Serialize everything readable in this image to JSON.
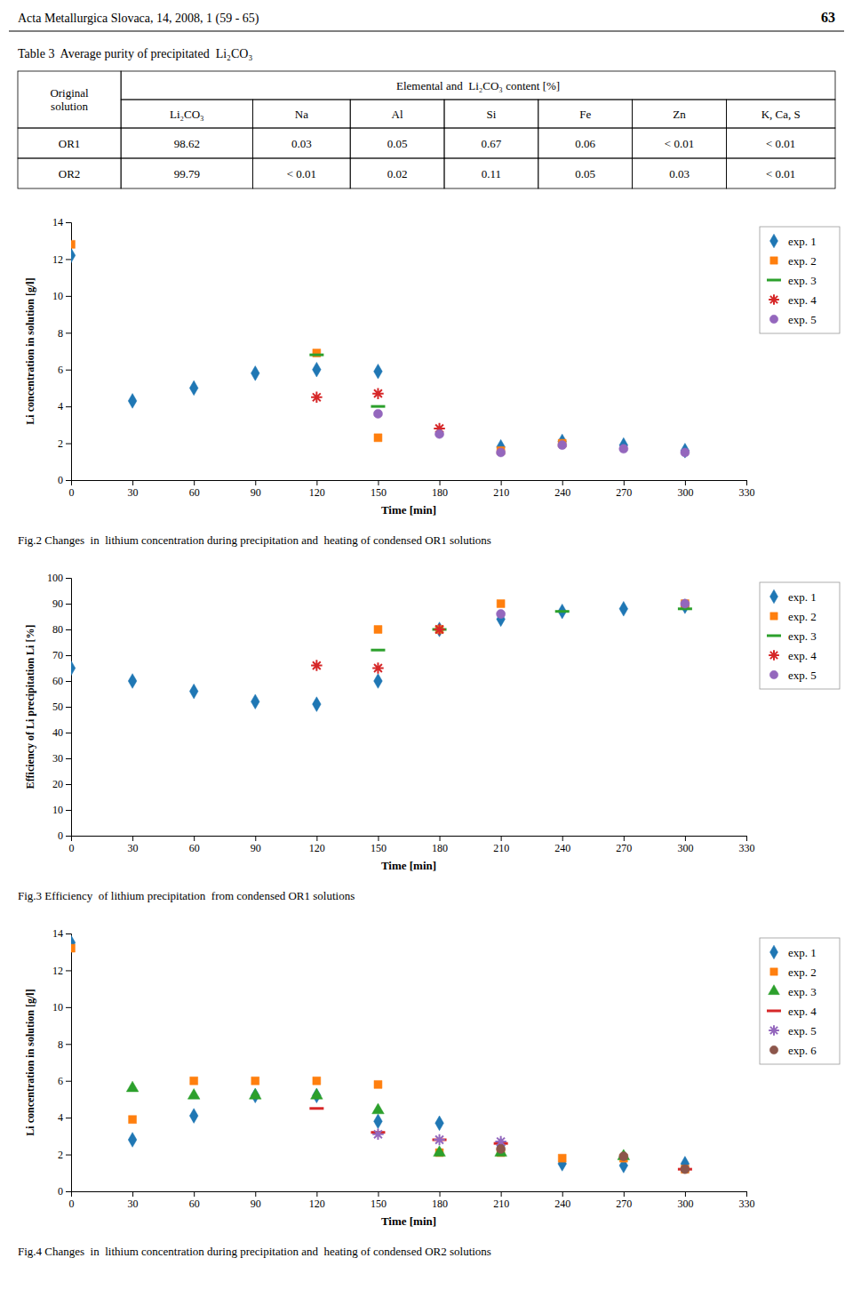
{
  "page_title": "Acta Metallurgica Slovaca, 14, 2008, 1 (59 - 65)",
  "page_number": "63",
  "table": {
    "title": "Table 3  Average purity of precipitated  Li₂CO₃",
    "corner": "Original\nsolution",
    "group_header": "Elemental and  Li₂CO₃ content [%]",
    "columns": [
      "Li₂CO₃",
      "Na",
      "Al",
      "Si",
      "Fe",
      "Zn",
      "K, Ca, S"
    ],
    "rows": [
      [
        "OR1",
        "98.62",
        "0.03",
        "0.05",
        "0.67",
        "0.06",
        "< 0.01",
        "< 0.01"
      ],
      [
        "OR2",
        "99.79",
        "< 0.01",
        "0.02",
        "0.11",
        "0.05",
        "0.03",
        "< 0.01"
      ]
    ]
  },
  "chart_data": [
    {
      "type": "scatter",
      "title": "Fig.2 Changes  in  lithium concentration during precipitation and  heating of condensed OR1 solutions",
      "xlabel": "Time [min]",
      "ylabel": "Li concentration in solution [g/l]",
      "xlim": [
        0,
        330
      ],
      "ylim": [
        0,
        14
      ],
      "xticks": [
        0,
        30,
        60,
        90,
        120,
        150,
        180,
        210,
        240,
        270,
        300,
        330
      ],
      "yticks": [
        0,
        2,
        4,
        6,
        8,
        10,
        12,
        14
      ],
      "grid": false,
      "legend": "right",
      "series": [
        {
          "name": "exp. 1",
          "marker": "diamond",
          "x": [
            0,
            30,
            60,
            90,
            120,
            150,
            210,
            240,
            270,
            300
          ],
          "values": [
            12.2,
            4.3,
            5.0,
            5.8,
            6.0,
            5.9,
            1.8,
            2.1,
            1.9,
            1.6
          ]
        },
        {
          "name": "exp. 2",
          "marker": "square",
          "x": [
            0,
            120,
            150,
            210,
            240
          ],
          "values": [
            12.8,
            6.9,
            2.3,
            1.6,
            2.0
          ]
        },
        {
          "name": "exp. 3",
          "marker": "dash",
          "x": [
            120,
            150
          ],
          "values": [
            6.8,
            4.0
          ]
        },
        {
          "name": "exp. 4",
          "marker": "asterisk",
          "x": [
            120,
            150,
            180
          ],
          "values": [
            4.5,
            4.7,
            2.8
          ]
        },
        {
          "name": "exp. 5",
          "marker": "circle",
          "x": [
            150,
            180,
            210,
            240,
            270,
            300
          ],
          "values": [
            3.6,
            2.5,
            1.5,
            1.9,
            1.7,
            1.5
          ]
        }
      ]
    },
    {
      "type": "scatter",
      "title": "Fig.3 Efficiency  of lithium precipitation  from condensed OR1 solutions",
      "xlabel": "Time [min]",
      "ylabel": "Efficiency of Li precipitation Li [%]",
      "xlim": [
        0,
        330
      ],
      "ylim": [
        0,
        100
      ],
      "xticks": [
        0,
        30,
        60,
        90,
        120,
        150,
        180,
        210,
        240,
        270,
        300,
        330
      ],
      "yticks": [
        0,
        10,
        20,
        30,
        40,
        50,
        60,
        70,
        80,
        90,
        100
      ],
      "grid": false,
      "legend": "right",
      "series": [
        {
          "name": "exp. 1",
          "marker": "diamond",
          "x": [
            0,
            30,
            60,
            90,
            120,
            150,
            180,
            210,
            240,
            270,
            300
          ],
          "values": [
            65,
            60,
            56,
            52,
            51,
            60,
            80,
            84,
            87,
            88,
            89
          ]
        },
        {
          "name": "exp. 2",
          "marker": "square",
          "x": [
            150,
            180,
            210,
            300
          ],
          "values": [
            80,
            80,
            90,
            90
          ]
        },
        {
          "name": "exp. 3",
          "marker": "dash",
          "x": [
            150,
            180,
            240,
            300
          ],
          "values": [
            72,
            80,
            87,
            88
          ]
        },
        {
          "name": "exp. 4",
          "marker": "asterisk",
          "x": [
            120,
            150,
            180
          ],
          "values": [
            66,
            65,
            80
          ]
        },
        {
          "name": "exp. 5",
          "marker": "circle",
          "x": [
            210,
            300
          ],
          "values": [
            86,
            90
          ]
        }
      ]
    },
    {
      "type": "scatter",
      "title": "Fig.4 Changes  in  lithium concentration during precipitation and  heating of condensed OR2 solutions",
      "xlabel": "Time [min]",
      "ylabel": "Li concentration in solution [g/l]",
      "xlim": [
        0,
        330
      ],
      "ylim": [
        0,
        14
      ],
      "xticks": [
        0,
        30,
        60,
        90,
        120,
        150,
        180,
        210,
        240,
        270,
        300,
        330
      ],
      "yticks": [
        0,
        2,
        4,
        6,
        8,
        10,
        12,
        14
      ],
      "grid": false,
      "legend": "right",
      "series": [
        {
          "name": "exp. 1",
          "marker": "diamond",
          "x": [
            0,
            30,
            60,
            90,
            120,
            150,
            180,
            210,
            240,
            270,
            300
          ],
          "values": [
            13.5,
            2.8,
            4.1,
            5.2,
            5.2,
            3.8,
            3.7,
            2.5,
            1.5,
            1.4,
            1.5
          ]
        },
        {
          "name": "exp. 2",
          "marker": "square",
          "x": [
            0,
            30,
            60,
            90,
            120,
            150,
            180,
            210,
            240,
            270,
            300
          ],
          "values": [
            13.2,
            3.9,
            6.0,
            6.0,
            6.0,
            5.8,
            2.1,
            2.1,
            1.8,
            1.8,
            1.2
          ]
        },
        {
          "name": "exp. 3",
          "marker": "triangle",
          "x": [
            30,
            60,
            90,
            120,
            150,
            180,
            210,
            270
          ],
          "values": [
            5.6,
            5.2,
            5.2,
            5.2,
            4.4,
            2.1,
            2.1,
            1.9
          ]
        },
        {
          "name": "exp. 4",
          "marker": "dash",
          "x": [
            120,
            150,
            180,
            210,
            300
          ],
          "values": [
            4.5,
            3.2,
            2.8,
            2.6,
            1.2
          ]
        },
        {
          "name": "exp. 5",
          "marker": "asterisk",
          "x": [
            150,
            180,
            210
          ],
          "values": [
            3.1,
            2.8,
            2.7
          ]
        },
        {
          "name": "exp. 6",
          "marker": "circle",
          "x": [
            210,
            270,
            300
          ],
          "values": [
            2.3,
            1.9,
            1.2
          ]
        }
      ]
    }
  ]
}
